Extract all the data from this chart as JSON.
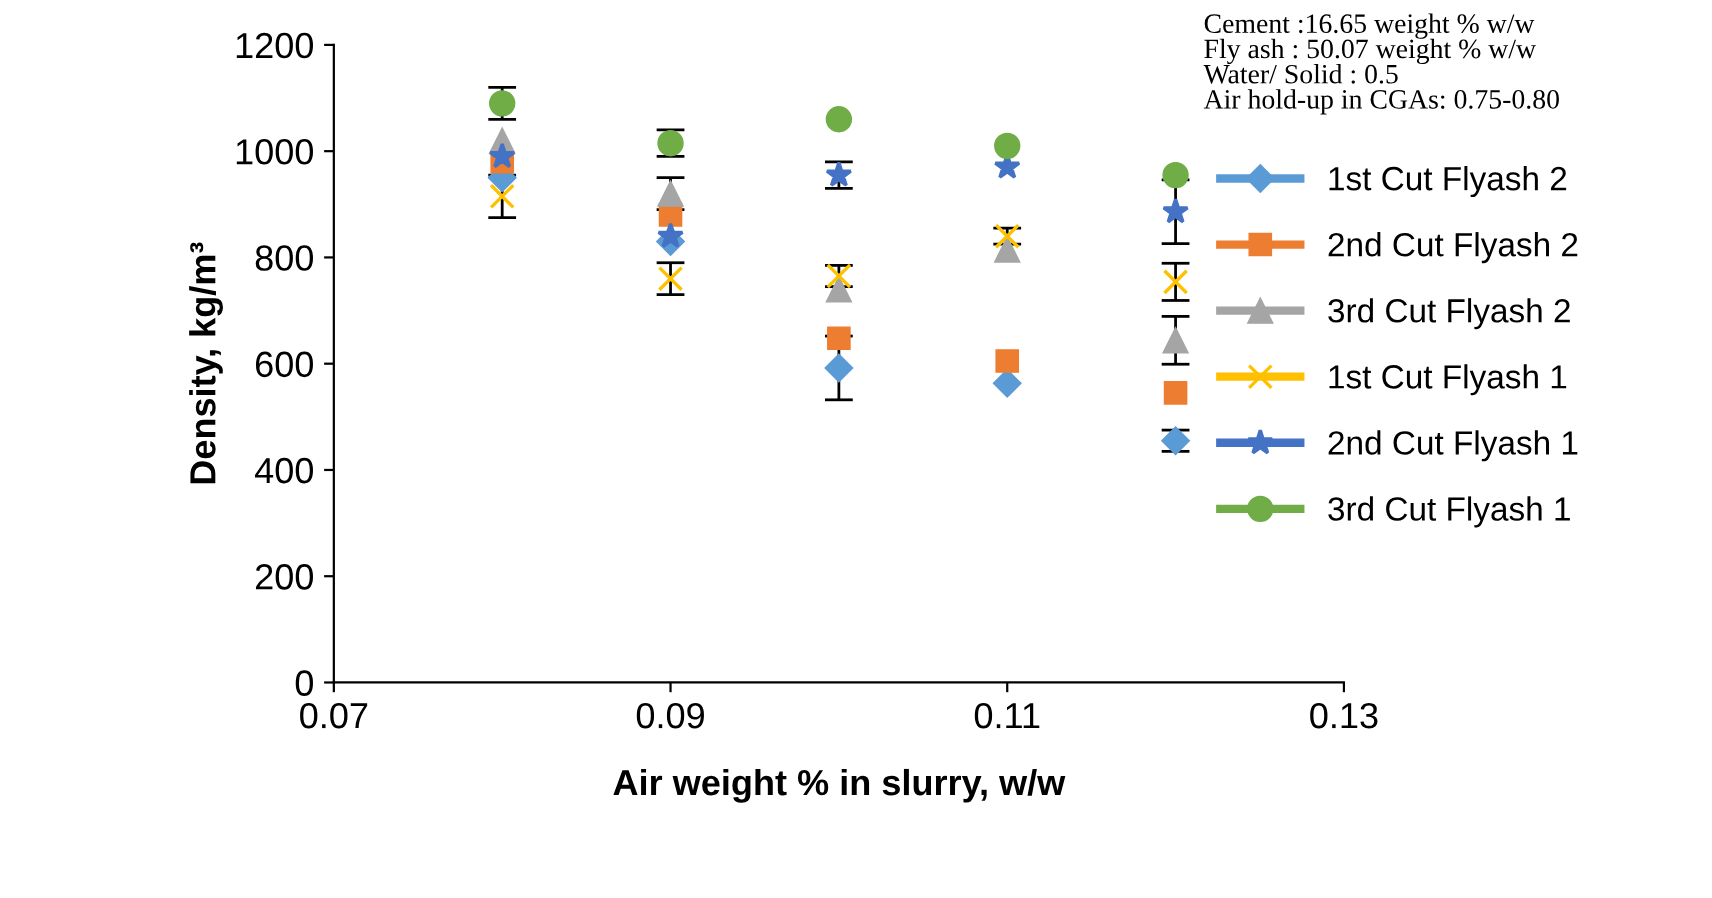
{
  "chart_data": {
    "type": "scatter",
    "xlabel": "Air weight % in slurry, w/w",
    "ylabel": "Density, kg/m³",
    "x": [
      0.08,
      0.09,
      0.1,
      0.11,
      0.12
    ],
    "xlim": [
      0.07,
      0.13
    ],
    "xticks": [
      0.07,
      0.09,
      0.11,
      0.13
    ],
    "ylim": [
      0,
      1200
    ],
    "yticks": [
      0,
      200,
      400,
      600,
      800,
      1000,
      1200
    ],
    "grid": false,
    "legend": "right",
    "annotations": [
      "Cement :16.65 weight % w/w\nFly ash : 50.07 weight % w/w\nWater/ Solid : 0.5\nAir hold-up in CGAs: 0.75-0.80"
    ],
    "series": [
      {
        "name": "1st Cut Flyash 2",
        "color": "#5b9bd5",
        "marker": "diamond",
        "values": [
          950,
          830,
          592,
          563,
          455
        ],
        "errors": [
          null,
          null,
          60,
          null,
          20
        ]
      },
      {
        "name": "2nd Cut Flyash 2",
        "color": "#ed7d31",
        "marker": "square",
        "values": [
          980,
          880,
          648,
          605,
          545
        ]
      },
      {
        "name": "3rd Cut Flyash 2",
        "color": "#a5a5a5",
        "marker": "triangle",
        "values": [
          1020,
          920,
          740,
          815,
          644
        ],
        "errors": [
          null,
          30,
          null,
          null,
          45
        ]
      },
      {
        "name": "1st Cut Flyash 1",
        "color": "#ffc000",
        "marker": "cross",
        "values": [
          915,
          760,
          765,
          840,
          754
        ],
        "errors": [
          40,
          30,
          20,
          15,
          35
        ]
      },
      {
        "name": "2nd Cut Flyash 1",
        "color": "#4472c4",
        "marker": "star",
        "values": [
          990,
          840,
          955,
          970,
          886
        ],
        "errors": [
          null,
          null,
          25,
          null,
          60
        ]
      },
      {
        "name": "3rd Cut Flyash 1",
        "color": "#70ad47",
        "marker": "circle",
        "values": [
          1090,
          1015,
          1060,
          1010,
          955
        ],
        "errors": [
          30,
          25,
          null,
          null,
          null
        ]
      }
    ]
  }
}
